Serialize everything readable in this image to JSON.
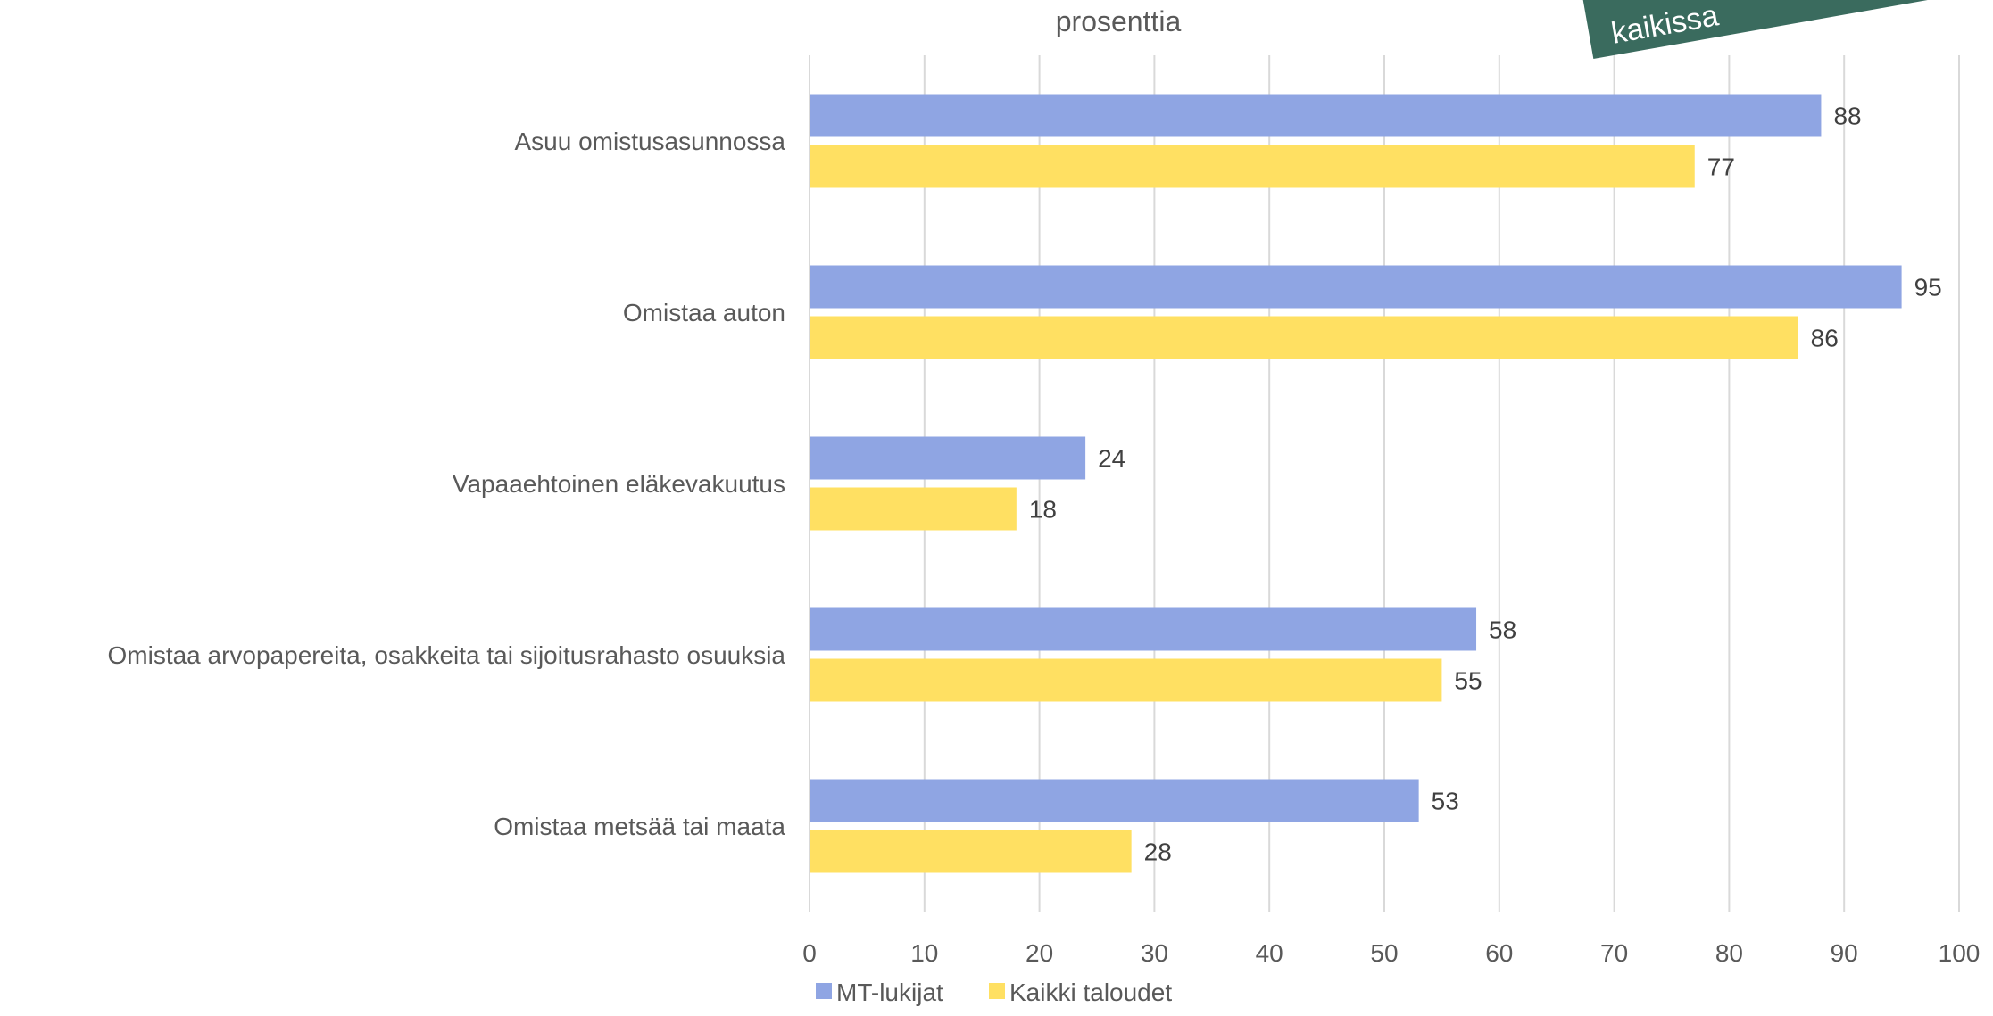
{
  "banner": {
    "text": "kaikissa",
    "color": "#3a6b5e"
  },
  "chart_data": {
    "type": "bar",
    "orientation": "horizontal",
    "title": "prosenttia",
    "categories": [
      "Asuu omistusasunnossa",
      "Omistaa auton",
      "Vapaaehtoinen eläkevakuutus",
      "Omistaa arvopapereita, osakkeita tai sijoitusrahasto osuuksia",
      "Omistaa metsää tai maata"
    ],
    "series": [
      {
        "name": "MT-lukijat",
        "color": "#8fa5e3",
        "values": [
          88,
          95,
          24,
          58,
          53
        ]
      },
      {
        "name": "Kaikki taloudet",
        "color": "#ffe062",
        "values": [
          77,
          86,
          18,
          55,
          28
        ]
      }
    ],
    "xlim": [
      0,
      100
    ],
    "xticks": [
      0,
      10,
      20,
      30,
      40,
      50,
      60,
      70,
      80,
      90,
      100
    ],
    "grid": true,
    "legend": "bottom",
    "data_labels": true
  }
}
